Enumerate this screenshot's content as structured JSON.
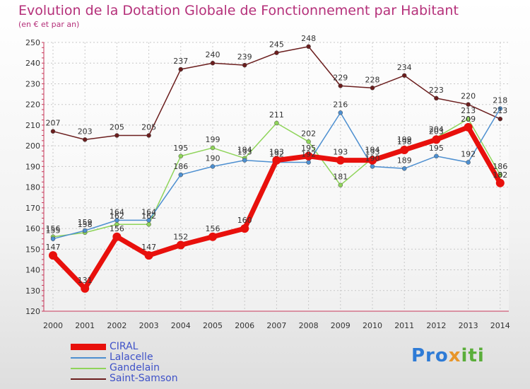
{
  "chart_data": {
    "type": "line",
    "title": "Evolution de la Dotation Globale de Fonctionnement par Habitant",
    "subtitle": "(en € et par an)",
    "xlabel": "",
    "ylabel": "",
    "ylim": [
      120,
      250
    ],
    "yticks": [
      120,
      130,
      140,
      150,
      160,
      170,
      180,
      190,
      200,
      210,
      220,
      230,
      240,
      250
    ],
    "categories": [
      "2000",
      "2001",
      "2002",
      "2003",
      "2004",
      "2005",
      "2006",
      "2007",
      "2008",
      "2009",
      "2010",
      "2011",
      "2012",
      "2013",
      "2014"
    ],
    "grid": true,
    "legend_position": "bottom-left",
    "series": [
      {
        "name": "Saint-Samson",
        "color": "#6b1e1e",
        "values": [
          207,
          203,
          205,
          205,
          237,
          240,
          239,
          245,
          248,
          229,
          228,
          234,
          223,
          220,
          213
        ]
      },
      {
        "name": "Gandelain",
        "color": "#8fd45a",
        "values": [
          156,
          158,
          162,
          162,
          195,
          199,
          194,
          211,
          202,
          181,
          194,
          199,
          204,
          213,
          186
        ]
      },
      {
        "name": "Lalacelle",
        "color": "#4d8fd0",
        "values": [
          155,
          159,
          164,
          164,
          186,
          190,
          193,
          192,
          192,
          216,
          190,
          189,
          195,
          192,
          218
        ]
      },
      {
        "name": "CIRAL",
        "color": "#e8100c",
        "values": [
          147,
          131,
          156,
          147,
          152,
          156,
          160,
          193,
          195,
          193,
          193,
          198,
          203,
          209,
          182
        ]
      }
    ],
    "legend_order": [
      "CIRAL",
      "Lalacelle",
      "Gandelain",
      "Saint-Samson"
    ]
  },
  "branding": {
    "logo_text": [
      "Pro",
      "x",
      "iti"
    ]
  }
}
